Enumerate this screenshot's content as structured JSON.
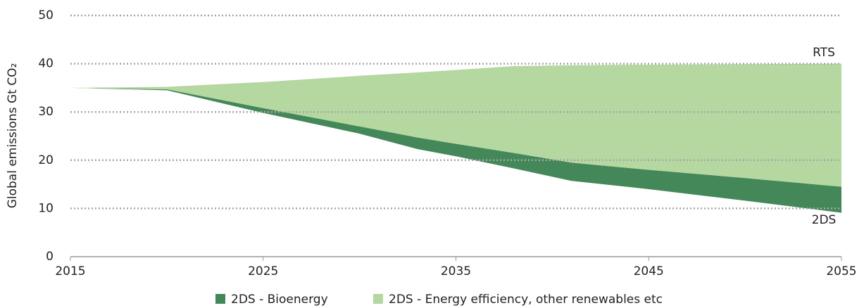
{
  "chart_data": {
    "type": "stacked_area",
    "ylabel": "Global emissions Gt CO₂",
    "x": [
      2015,
      2020,
      2025,
      2030,
      2033,
      2035,
      2038,
      2041,
      2045,
      2050,
      2055
    ],
    "baseline": {
      "name": "2DS",
      "values": [
        35,
        34.5,
        29.8,
        25.5,
        22.3,
        20.8,
        18.3,
        15.7,
        14,
        11.6,
        9.1
      ]
    },
    "series": [
      {
        "name": "2DS - Bioenergy",
        "color": "#44885a",
        "values": [
          0,
          0.2,
          1.0,
          1.5,
          2.4,
          2.6,
          3.2,
          3.8,
          4.0,
          4.7,
          5.4
        ]
      },
      {
        "name": "2DS - Energy efficiency, other renewables etc",
        "color": "#b5d7a0",
        "values": [
          0,
          0.5,
          5.4,
          10.5,
          13.5,
          15.3,
          18.0,
          20.2,
          21.8,
          23.6,
          25.5
        ]
      }
    ],
    "annotations": [
      "RTS",
      "2DS"
    ],
    "xlim": [
      2015,
      2055
    ],
    "xticks": [
      2015,
      2025,
      2035,
      2045,
      2055
    ],
    "ylim": [
      0,
      50
    ],
    "yticks": [
      0,
      10,
      20,
      30,
      40,
      50
    ],
    "grid": true
  }
}
